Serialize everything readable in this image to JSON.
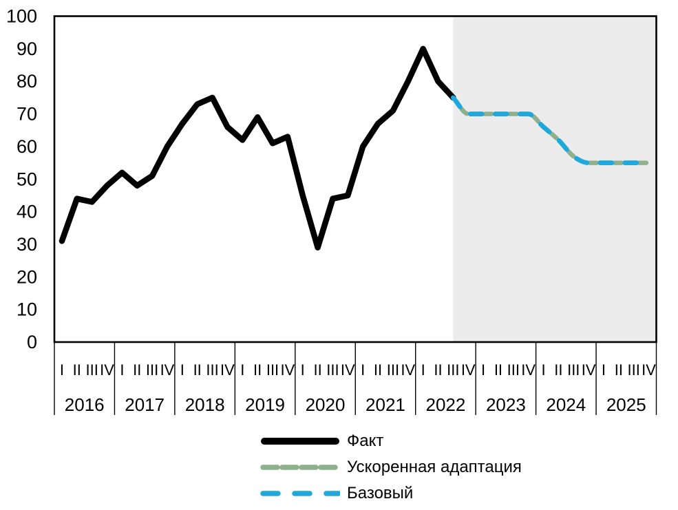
{
  "chart_data": {
    "type": "line",
    "title": "",
    "ylim": [
      0,
      100
    ],
    "y_axis": {
      "ticks": [
        0,
        10,
        20,
        30,
        40,
        50,
        60,
        70,
        80,
        90,
        100
      ]
    },
    "x_axis": {
      "years": [
        "2016",
        "2017",
        "2018",
        "2019",
        "2020",
        "2021",
        "2022",
        "2023",
        "2024",
        "2025"
      ],
      "quarter_labels": [
        "I",
        "II",
        "III",
        "IV"
      ]
    },
    "forecast_band": {
      "start_quarter_index": 26,
      "color": "#ECECEC"
    },
    "series": [
      {
        "name": "Факт",
        "color": "#000000",
        "style": "solid",
        "start_index": 0,
        "values": [
          31,
          44,
          43,
          48,
          52,
          48,
          51,
          60,
          67,
          73,
          75,
          66,
          62,
          69,
          61,
          63,
          45,
          29,
          44,
          45,
          60,
          67,
          71,
          80,
          90,
          80,
          75
        ]
      },
      {
        "name": "Ускоренная адаптация",
        "color": "#8FB08D",
        "style": "short-dash",
        "start_index": 26,
        "values": [
          75,
          70,
          70,
          70,
          70,
          70,
          66,
          62,
          57,
          55,
          55,
          55,
          55,
          55
        ]
      },
      {
        "name": "Базовый",
        "color": "#1FA8DC",
        "style": "long-dash",
        "start_index": 26,
        "values": [
          75,
          70,
          70,
          70,
          70,
          70,
          66,
          62,
          57,
          55,
          55,
          55,
          55,
          55
        ]
      }
    ],
    "legend_position": "bottom"
  },
  "legend": {
    "items": [
      {
        "label": "Факт",
        "color": "#000000",
        "pattern": "solid"
      },
      {
        "label": "Ускоренная адаптация",
        "color": "#8FB08D",
        "pattern": "short-dash"
      },
      {
        "label": "Базовый",
        "color": "#1FA8DC",
        "pattern": "long-dash"
      }
    ]
  }
}
